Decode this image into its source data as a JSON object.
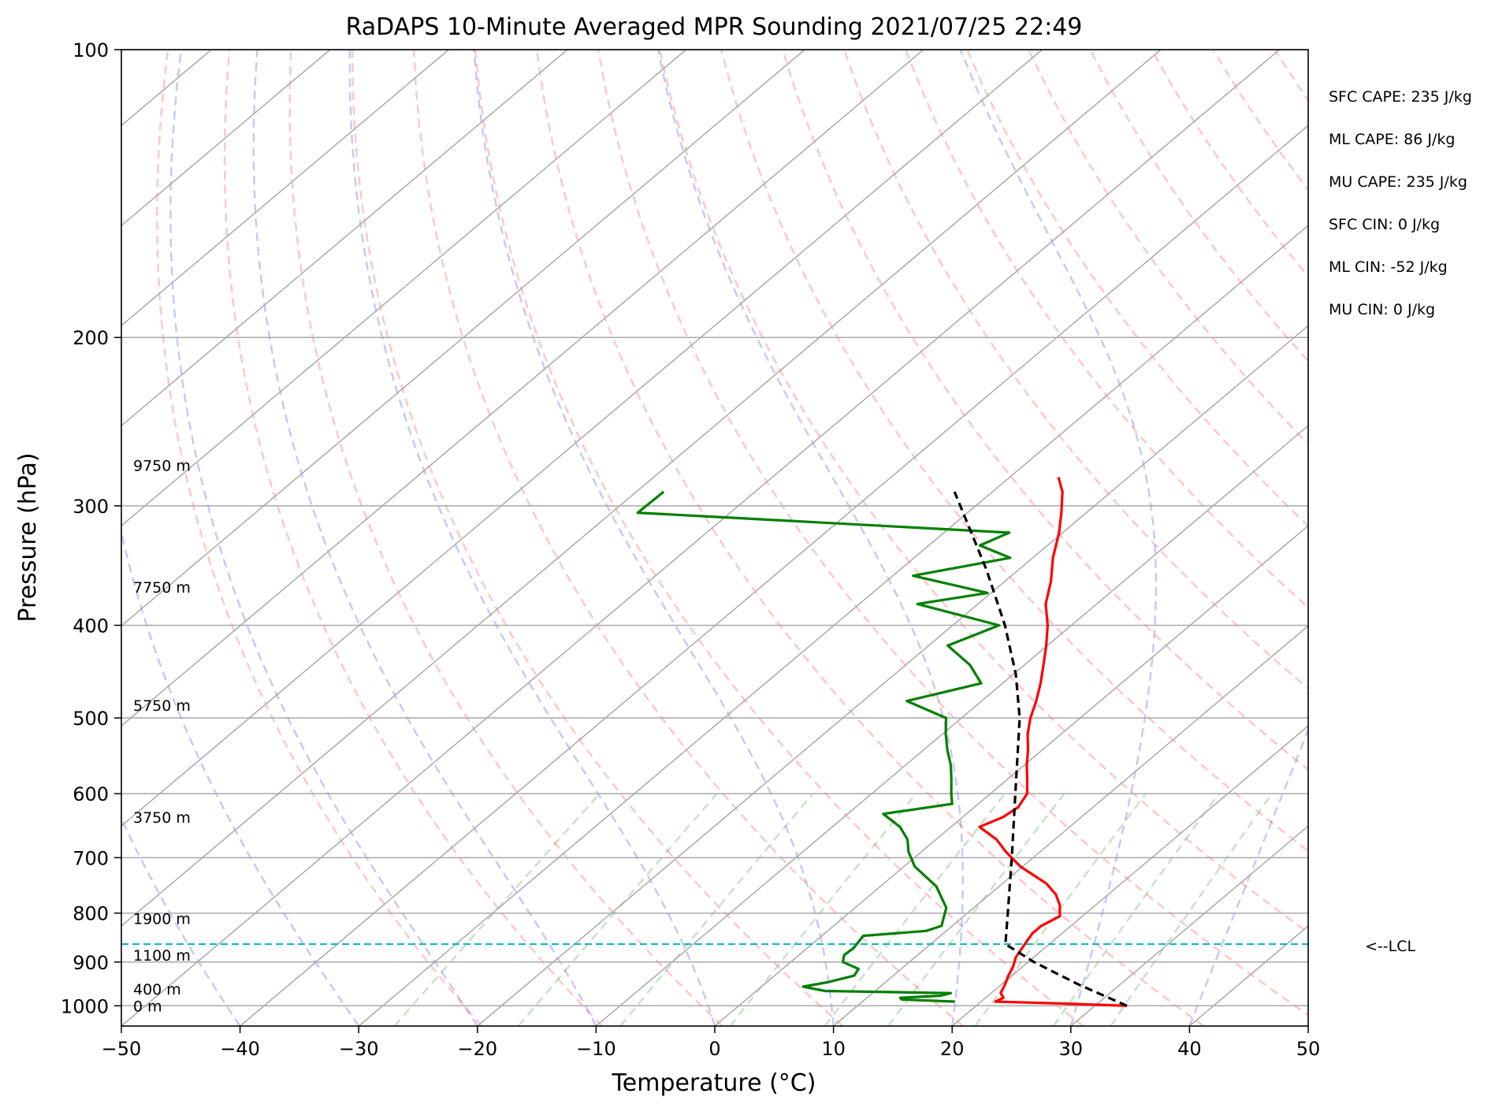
{
  "chart_data": {
    "type": "line",
    "subtype": "skew-t log-p",
    "title": "RaDAPS 10-Minute Averaged MPR Sounding 2021/07/25 22:49",
    "xlabel": "Temperature (°C)",
    "ylabel": "Pressure (hPa)",
    "xlim": [
      -50,
      50
    ],
    "ylim": [
      1050,
      100
    ],
    "y_scale": "log",
    "x_ticks": [
      "−50",
      "−40",
      "−30",
      "−20",
      "−10",
      "0",
      "10",
      "20",
      "30",
      "40",
      "50"
    ],
    "y_ticks": [
      "100",
      "200",
      "300",
      "400",
      "500",
      "600",
      "700",
      "800",
      "900",
      "1000"
    ],
    "grid": true,
    "series": [
      {
        "role": "temperature",
        "color": "#ff0000",
        "points": [
          [
            1000,
            32.7
          ],
          [
            995,
            27.4
          ],
          [
            990,
            21.2
          ],
          [
            981,
            21.5
          ],
          [
            970,
            20.8
          ],
          [
            950,
            20.3
          ],
          [
            930,
            19.7
          ],
          [
            910,
            19.2
          ],
          [
            890,
            18.5
          ],
          [
            870,
            18.1
          ],
          [
            840,
            17.5
          ],
          [
            825,
            17.5
          ],
          [
            806,
            18.1
          ],
          [
            785,
            17.0
          ],
          [
            765,
            15.6
          ],
          [
            745,
            13.7
          ],
          [
            715,
            9.8
          ],
          [
            690,
            7.1
          ],
          [
            670,
            5.1
          ],
          [
            650,
            2.4
          ],
          [
            635,
            3.4
          ],
          [
            620,
            3.7
          ],
          [
            600,
            3.1
          ],
          [
            580,
            1.7
          ],
          [
            560,
            0.2
          ],
          [
            540,
            -1.2
          ],
          [
            520,
            -2.8
          ],
          [
            500,
            -4.2
          ],
          [
            480,
            -5.4
          ],
          [
            460,
            -6.8
          ],
          [
            440,
            -8.4
          ],
          [
            420,
            -10.1
          ],
          [
            400,
            -12.0
          ],
          [
            380,
            -14.3
          ],
          [
            360,
            -16.1
          ],
          [
            340,
            -18.3
          ],
          [
            320,
            -20.3
          ],
          [
            305,
            -22.1
          ],
          [
            290,
            -24.1
          ],
          [
            280,
            -25.9
          ]
        ]
      },
      {
        "role": "dewpoint",
        "color": "#008000",
        "points": [
          [
            990,
            17.8
          ],
          [
            985,
            13.1
          ],
          [
            981,
            12.8
          ],
          [
            976,
            16.0
          ],
          [
            970,
            16.6
          ],
          [
            965,
            5.8
          ],
          [
            955,
            3.5
          ],
          [
            945,
            5.1
          ],
          [
            930,
            6.7
          ],
          [
            915,
            6.4
          ],
          [
            900,
            4.4
          ],
          [
            885,
            3.8
          ],
          [
            870,
            3.9
          ],
          [
            845,
            3.5
          ],
          [
            835,
            8.3
          ],
          [
            825,
            9.1
          ],
          [
            810,
            8.5
          ],
          [
            790,
            7.7
          ],
          [
            750,
            4.7
          ],
          [
            715,
            0.9
          ],
          [
            690,
            -1.1
          ],
          [
            670,
            -2.4
          ],
          [
            650,
            -4.3
          ],
          [
            630,
            -7.0
          ],
          [
            615,
            -2.2
          ],
          [
            600,
            -3.3
          ],
          [
            580,
            -4.7
          ],
          [
            560,
            -6.2
          ],
          [
            540,
            -8.0
          ],
          [
            520,
            -9.7
          ],
          [
            500,
            -11.3
          ],
          [
            480,
            -16.3
          ],
          [
            460,
            -11.8
          ],
          [
            440,
            -14.6
          ],
          [
            420,
            -18.4
          ],
          [
            400,
            -16.1
          ],
          [
            380,
            -25.1
          ],
          [
            370,
            -20.3
          ],
          [
            355,
            -28.3
          ],
          [
            340,
            -21.9
          ],
          [
            330,
            -25.7
          ],
          [
            320,
            -24.5
          ],
          [
            305,
            -57.8
          ],
          [
            290,
            -57.7
          ]
        ]
      },
      {
        "role": "parcel profile",
        "color": "#000000",
        "style": "dashed",
        "points": [
          [
            1000,
            32.7
          ],
          [
            950,
            26.5
          ],
          [
            900,
            20.5
          ],
          [
            862,
            16.3
          ],
          [
            800,
            13.4
          ],
          [
            700,
            8.2
          ],
          [
            600,
            2.1
          ],
          [
            500,
            -5.1
          ],
          [
            450,
            -9.8
          ],
          [
            400,
            -15.6
          ],
          [
            350,
            -22.7
          ],
          [
            320,
            -27.7
          ],
          [
            290,
            -33.2
          ]
        ]
      }
    ],
    "lcl_pressure": 862,
    "height_labels": [
      {
        "p": 1000,
        "label": "0 m"
      },
      {
        "p": 960,
        "label": "400 m"
      },
      {
        "p": 885,
        "label": "1100 m"
      },
      {
        "p": 810,
        "label": "1900 m"
      },
      {
        "p": 635,
        "label": "3750 m"
      },
      {
        "p": 485,
        "label": "5750 m"
      },
      {
        "p": 365,
        "label": "7750 m"
      },
      {
        "p": 272,
        "label": "9750 m"
      }
    ],
    "annotations": {
      "lcl": "<--LCL",
      "indices": [
        "SFC CAPE: 235 J/kg",
        "ML CAPE: 86 J/kg",
        "MU CAPE: 235 J/kg",
        "SFC CIN: 0 J/kg",
        "ML CIN: -52 J/kg",
        "MU CIN: 0 J/kg"
      ]
    },
    "background_lines": {
      "isotherms": {
        "color": "#a9a9a9",
        "start": -160,
        "end": 50,
        "step": 10
      },
      "dry_adiabats": {
        "color": "#ff0000",
        "opacity": 0.22,
        "theta_K": [
          250,
          260,
          270,
          280,
          290,
          300,
          310,
          320,
          330,
          340,
          350,
          360,
          370,
          380,
          390,
          400,
          410,
          420,
          430,
          440
        ]
      },
      "moist_adiabats": {
        "color": "#0000ff",
        "opacity": 0.22,
        "start_temps_C": [
          -40,
          -30,
          -20,
          -10,
          0,
          10,
          20,
          30,
          40
        ]
      },
      "mixing_ratio_lines": {
        "color": "#008000",
        "opacity": 0.22,
        "top_pressure": 600,
        "values_gkg": [
          0.4,
          1,
          2,
          4,
          7,
          10,
          16,
          24,
          32
        ]
      },
      "lcl_line_color": "#00bfbf"
    }
  }
}
